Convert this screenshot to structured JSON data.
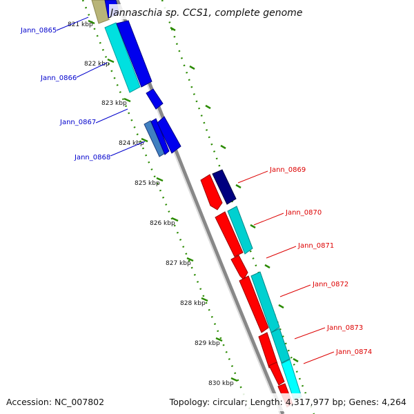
{
  "title": "Jannaschia sp. CCS1, complete genome",
  "footer": {
    "accession": "Accession: NC_007802",
    "summary": "Topology: circular; Length: 4,317,977 bp; Genes: 4,264"
  },
  "ticks": [
    "821 kbp",
    "822 kbp",
    "823 kbp",
    "824 kbp",
    "825 kbp",
    "826 kbp",
    "827 kbp",
    "828 kbp",
    "829 kbp",
    "830 kbp"
  ],
  "genes_left": [
    "Jann_0865",
    "Jann_0866",
    "Jann_0867",
    "Jann_0868"
  ],
  "genes_right": [
    "Jann_0869",
    "Jann_0870",
    "Jann_0871",
    "Jann_0872",
    "Jann_0873",
    "Jann_0874"
  ],
  "colors": {
    "left_label": "#0000cc",
    "right_label": "#dd0000",
    "tick_marks": "#2a8a00",
    "backbone": "#888888",
    "gene_blue": "#0000ee",
    "gene_cyan": "#00e0e0",
    "gene_red": "#ff0000",
    "gene_navy": "#000080",
    "gene_olive": "#b8b478",
    "gene_teal": "#40c8c8"
  }
}
